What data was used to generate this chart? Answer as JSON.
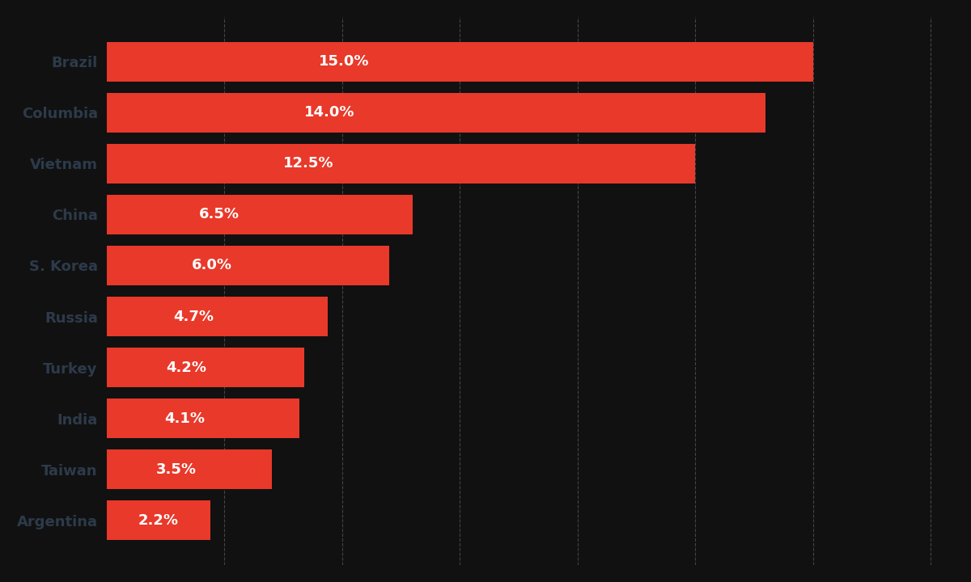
{
  "categories": [
    "Brazil",
    "Columbia",
    "Vietnam",
    "China",
    "S. Korea",
    "Russia",
    "Turkey",
    "India",
    "Taiwan",
    "Argentina"
  ],
  "values": [
    15.0,
    14.0,
    12.5,
    6.5,
    6.0,
    4.7,
    4.2,
    4.1,
    3.5,
    2.2
  ],
  "labels": [
    "15.0%",
    "14.0%",
    "12.5%",
    "6.5%",
    "6.0%",
    "4.7%",
    "4.2%",
    "4.1%",
    "3.5%",
    "2.2%"
  ],
  "bar_color": "#E8392A",
  "background_color": "#111111",
  "text_color": "#FFFFFF",
  "label_color": "#2d3a4a",
  "grid_color": "#444444",
  "bar_gap": 0.22,
  "xlim": [
    0,
    18
  ],
  "label_fontsize": 13,
  "value_fontsize": 13,
  "grid_xticks": [
    2.5,
    5.0,
    7.5,
    10.0,
    12.5,
    15.0,
    17.5
  ]
}
